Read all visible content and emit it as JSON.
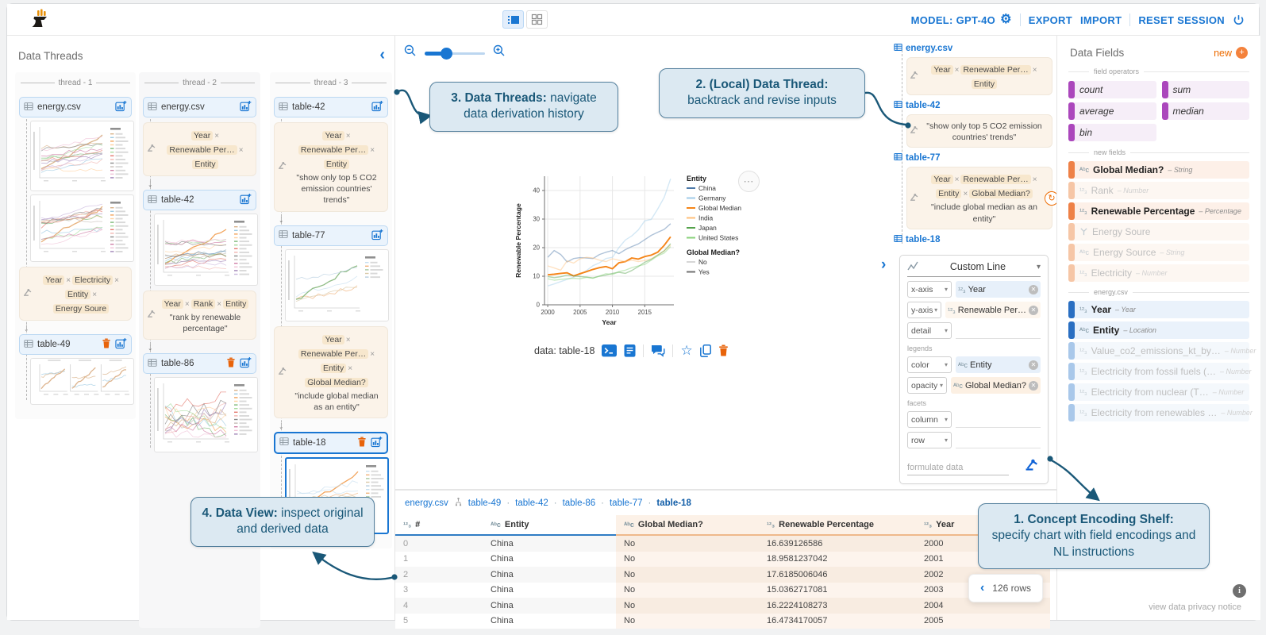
{
  "topbar": {
    "model_label": "MODEL: GPT-4O",
    "export_label": "EXPORT",
    "import_label": "IMPORT",
    "reset_label": "RESET SESSION"
  },
  "data_threads": {
    "title": "Data Threads",
    "threads": [
      {
        "name": "thread - 1",
        "nodes": [
          {
            "type": "table",
            "name": "energy.csv",
            "trash": false,
            "selected": false
          },
          {
            "type": "chart",
            "thumbnail": "energy-co2-lines",
            "selected": false
          },
          {
            "type": "chart",
            "thumbnail": "energy-electricity-lines",
            "selected": false
          },
          {
            "type": "concept",
            "fields": [
              "Year",
              "Electricity",
              "Entity",
              "Energy Soure"
            ],
            "quote": ""
          },
          {
            "type": "arrow"
          },
          {
            "type": "table",
            "name": "table-49",
            "trash": true,
            "selected": false
          },
          {
            "type": "chart",
            "thumbnail": "facet-three-panels",
            "selected": false
          }
        ]
      },
      {
        "name": "thread - 2",
        "nodes": [
          {
            "type": "table",
            "name": "energy.csv",
            "trash": false,
            "selected": false
          },
          {
            "type": "concept",
            "fields": [
              "Year",
              "Renewable Per…",
              "Entity"
            ],
            "quote": ""
          },
          {
            "type": "arrow"
          },
          {
            "type": "table",
            "name": "table-42",
            "trash": false,
            "selected": false
          },
          {
            "type": "chart",
            "thumbnail": "renewable-all-entities",
            "selected": false
          },
          {
            "type": "concept",
            "fields": [
              "Year",
              "Rank",
              "Entity"
            ],
            "quote": "\"rank by renewable percentage\""
          },
          {
            "type": "arrow"
          },
          {
            "type": "table",
            "name": "table-86",
            "trash": true,
            "selected": false
          },
          {
            "type": "chart",
            "thumbnail": "rank-bump-lines",
            "selected": false
          }
        ]
      },
      {
        "name": "thread - 3",
        "nodes": [
          {
            "type": "table",
            "name": "table-42",
            "trash": false,
            "selected": false
          },
          {
            "type": "concept",
            "fields": [
              "Year",
              "Renewable Per…",
              "Entity"
            ],
            "quote": "\"show only top 5 CO2 emission countries' trends\""
          },
          {
            "type": "arrow"
          },
          {
            "type": "table",
            "name": "table-77",
            "trash": false,
            "selected": false
          },
          {
            "type": "chart",
            "thumbnail": "top5-renewable-lines",
            "selected": false
          },
          {
            "type": "concept",
            "fields": [
              "Year",
              "Renewable Per…",
              "Entity",
              "Global Median?"
            ],
            "quote": "\"include global median as an entity\""
          },
          {
            "type": "arrow"
          },
          {
            "type": "table",
            "name": "table-18",
            "trash": true,
            "selected": true
          },
          {
            "type": "chart",
            "thumbnail": "median-highlight-lines",
            "selected": true
          }
        ]
      }
    ]
  },
  "canvas": {
    "data_label": "data: table-18"
  },
  "local_thread": {
    "items": [
      {
        "type": "label",
        "name": "energy.csv"
      },
      {
        "type": "concept",
        "fields": [
          "Year",
          "Renewable Per…",
          "Entity"
        ],
        "quote": "",
        "refresh": false
      },
      {
        "type": "label",
        "name": "table-42"
      },
      {
        "type": "concept",
        "fields": [],
        "quote": "\"show only top 5 CO2 emission countries' trends\"",
        "refresh": false
      },
      {
        "type": "label",
        "name": "table-77"
      },
      {
        "type": "concept",
        "fields": [
          "Year",
          "Renewable Per…",
          "Entity",
          "Global Median?"
        ],
        "quote": "\"include global median as an entity\"",
        "refresh": true
      },
      {
        "type": "label",
        "name": "table-18"
      }
    ]
  },
  "encoding_shelf": {
    "chart_type": "Custom Line",
    "legends_label": "legends",
    "facets_label": "facets",
    "formulate_placeholder": "formulate data",
    "channels": [
      {
        "label": "x-axis",
        "icon": "number",
        "value": "Year",
        "kind": "base"
      },
      {
        "label": "y-axis",
        "icon": "number",
        "value": "Renewable Per…",
        "kind": "warm"
      },
      {
        "label": "detail",
        "icon": "",
        "value": "",
        "kind": ""
      },
      {
        "group": "legends"
      },
      {
        "label": "color",
        "icon": "string",
        "value": "Entity",
        "kind": "base"
      },
      {
        "label": "opacity",
        "icon": "string",
        "value": "Global Median?",
        "kind": "newf"
      },
      {
        "group": "facets"
      },
      {
        "label": "column",
        "icon": "",
        "value": "",
        "kind": ""
      },
      {
        "label": "row",
        "icon": "",
        "value": "",
        "kind": ""
      }
    ]
  },
  "data_fields": {
    "title": "Data Fields",
    "new_label": "new",
    "operators_section": "field operators",
    "operators": [
      "count",
      "sum",
      "average",
      "median",
      "bin"
    ],
    "new_section": "new fields",
    "new_fields": [
      {
        "name": "Global Median?",
        "type": "– String",
        "icon": "string",
        "active": true
      },
      {
        "name": "Rank",
        "type": "– Number",
        "icon": "number",
        "active": false
      },
      {
        "name": "Renewable Percentage",
        "type": "– Percentage",
        "icon": "number",
        "active": true
      },
      {
        "name": "Energy Soure",
        "type": "",
        "icon": "derive",
        "active": false
      },
      {
        "name": "Energy Source",
        "type": "– String",
        "icon": "string",
        "active": false
      },
      {
        "name": "Electricity",
        "type": "– Number",
        "icon": "number",
        "active": false
      }
    ],
    "source_section": "energy.csv",
    "source_fields": [
      {
        "name": "Year",
        "type": "– Year",
        "icon": "number",
        "active": true
      },
      {
        "name": "Entity",
        "type": "– Location",
        "icon": "string",
        "active": true
      },
      {
        "name": "Value_co2_emissions_kt_by…",
        "type": "– Number",
        "icon": "number",
        "active": false
      },
      {
        "name": "Electricity from fossil fuels (…",
        "type": "– Number",
        "icon": "number",
        "active": false
      },
      {
        "name": "Electricity from nuclear (T…",
        "type": "– Number",
        "icon": "number",
        "active": false
      },
      {
        "name": "Electricity from renewables …",
        "type": "– Number",
        "icon": "number",
        "active": false
      }
    ],
    "privacy_notice": "view data privacy notice"
  },
  "data_view": {
    "tabs": [
      "energy.csv",
      "table-49",
      "table-42",
      "table-86",
      "table-77",
      "table-18"
    ],
    "active_tab": "table-18",
    "columns": [
      {
        "icon": "number",
        "label": "#",
        "tint": false,
        "width": 110
      },
      {
        "icon": "string",
        "label": "Entity",
        "tint": false,
        "width": 168
      },
      {
        "icon": "string",
        "label": "Global Median?",
        "tint": true,
        "width": 180
      },
      {
        "icon": "number",
        "label": "Renewable Percentage",
        "tint": true,
        "width": 198
      },
      {
        "icon": "number",
        "label": "Year",
        "tint": true,
        "width": 169
      }
    ],
    "rows": [
      [
        "0",
        "China",
        "No",
        "16.639126586",
        "2000"
      ],
      [
        "1",
        "China",
        "No",
        "18.9581237042",
        "2001"
      ],
      [
        "2",
        "China",
        "No",
        "17.6185006046",
        "2002"
      ],
      [
        "3",
        "China",
        "No",
        "15.0362717081",
        "2003"
      ],
      [
        "4",
        "China",
        "No",
        "16.2224108273",
        "2004"
      ],
      [
        "5",
        "China",
        "No",
        "16.4734170057",
        "2005"
      ]
    ],
    "row_count": "126 rows"
  },
  "callouts": [
    {
      "title": "1. Concept Encoding Shelf:",
      "body": "specify chart with field encodings and NL instructions"
    },
    {
      "title": "2. (Local) Data Thread:",
      "body": "backtrack and revise inputs"
    },
    {
      "title": "3. Data Threads:",
      "body": "navigate data derivation history"
    },
    {
      "title": "4. Data View:",
      "body": "inspect original and derived data"
    }
  ],
  "chart_data": {
    "type": "line",
    "title": "",
    "xlabel": "Year",
    "ylabel": "Renewable Percentage",
    "x_ticks": [
      2000,
      2005,
      2010,
      2015
    ],
    "y_ticks": [
      0,
      10,
      20,
      30,
      40
    ],
    "xlim": [
      1999.5,
      2019.5
    ],
    "ylim": [
      0,
      45
    ],
    "x": [
      2000,
      2001,
      2002,
      2003,
      2004,
      2005,
      2006,
      2007,
      2008,
      2009,
      2010,
      2011,
      2012,
      2013,
      2014,
      2015,
      2016,
      2017,
      2018,
      2019
    ],
    "series": [
      {
        "name": "China",
        "color": "#4c78a8",
        "opacity_group": "No",
        "values": [
          16.6,
          19.0,
          17.6,
          15.0,
          16.2,
          16.5,
          16.4,
          16.2,
          17.6,
          18.4,
          19.0,
          17.9,
          19.3,
          20.4,
          21.3,
          22.8,
          24.3,
          25.4,
          26.4,
          28.4
        ]
      },
      {
        "name": "Germany",
        "color": "#a0cbe8",
        "opacity_group": "No",
        "values": [
          6.6,
          7.3,
          8.1,
          8.9,
          9.7,
          10.6,
          12.0,
          13.7,
          14.7,
          16.2,
          16.6,
          20.0,
          22.7,
          24.1,
          26.2,
          29.4,
          29.9,
          33.5,
          37.6,
          44.1
        ]
      },
      {
        "name": "Global Median",
        "color": "#f58518",
        "opacity_group": "Yes",
        "values": [
          10.5,
          10.7,
          11.0,
          11.2,
          10.1,
          10.9,
          11.6,
          12.4,
          13.0,
          13.4,
          12.6,
          14.7,
          15.1,
          16.4,
          16.0,
          16.9,
          17.4,
          18.4,
          20.8,
          23.8
        ]
      },
      {
        "name": "India",
        "color": "#ffbf79",
        "opacity_group": "No",
        "values": [
          13.6,
          12.9,
          12.1,
          15.4,
          14.6,
          16.1,
          16.6,
          16.4,
          15.6,
          15.1,
          16.1,
          15.6,
          15.1,
          15.6,
          15.1,
          15.5,
          16.1,
          17.4,
          18.9,
          20.9
        ]
      },
      {
        "name": "Japan",
        "color": "#54a24b",
        "opacity_group": "No",
        "values": [
          9.9,
          9.5,
          9.8,
          10.4,
          10.1,
          9.9,
          9.7,
          9.4,
          10.0,
          10.4,
          11.0,
          11.4,
          11.0,
          12.0,
          13.4,
          14.9,
          15.9,
          17.4,
          18.9,
          21.4
        ]
      },
      {
        "name": "United States",
        "color": "#88d27a",
        "opacity_group": "No",
        "values": [
          9.1,
          8.6,
          8.9,
          9.1,
          9.3,
          9.1,
          9.6,
          9.3,
          10.1,
          10.9,
          10.6,
          11.6,
          12.1,
          13.0,
          13.6,
          14.1,
          15.6,
          17.1,
          18.1,
          20.4
        ]
      }
    ],
    "legend": {
      "entity_title": "Entity",
      "opacity_title": "Global Median?",
      "opacity_items": [
        {
          "label": "No",
          "color": "#d6d6d6"
        },
        {
          "label": "Yes",
          "color": "#707070"
        }
      ]
    }
  }
}
